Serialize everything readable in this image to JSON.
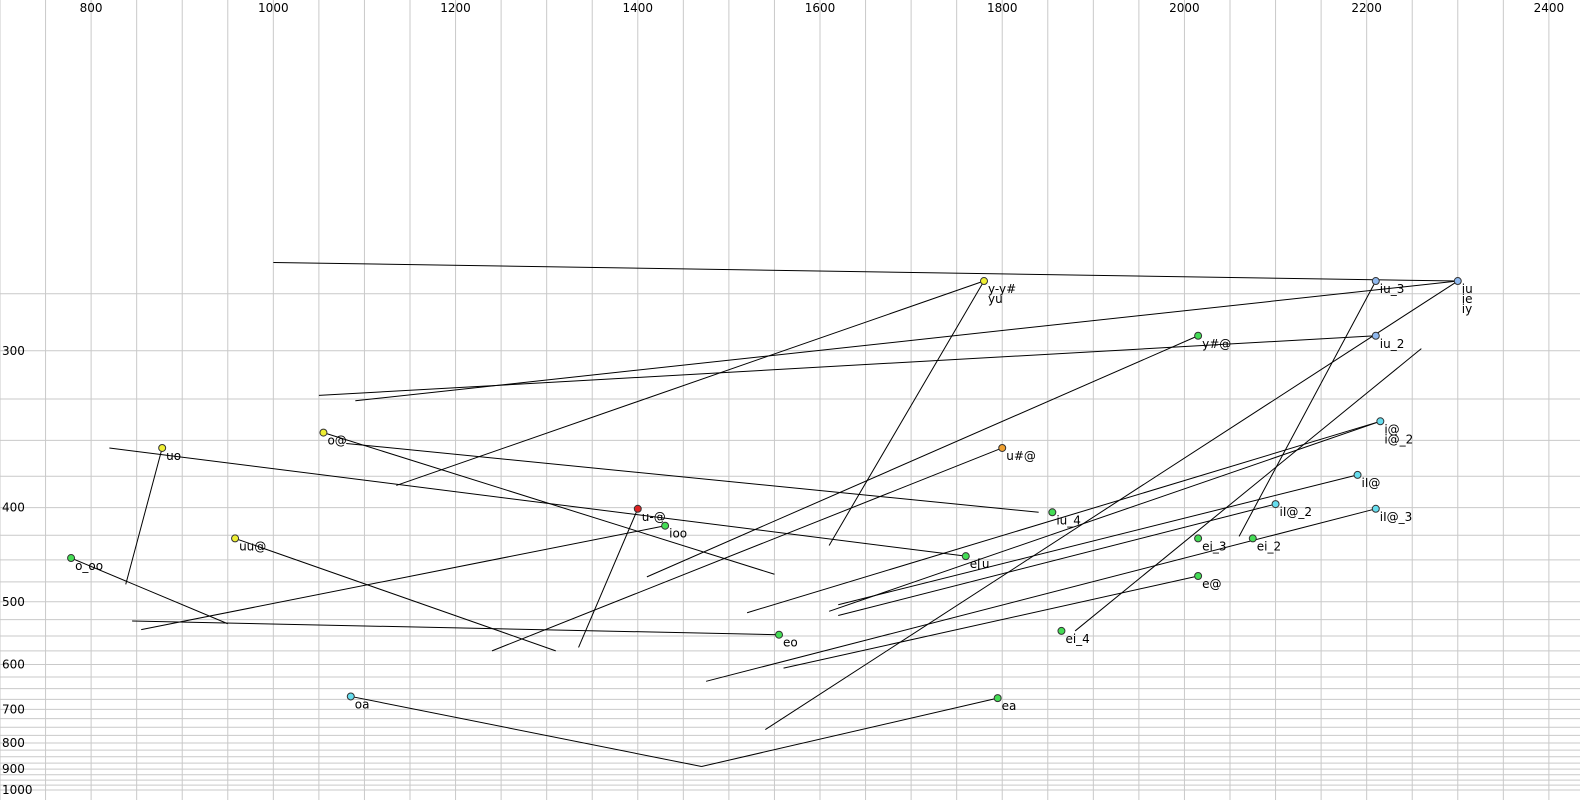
{
  "chart_data": {
    "type": "scatter",
    "title": "",
    "x_axis": {
      "min": 2500,
      "max": 700,
      "reversed": true,
      "position": "top",
      "ticks": [
        2400,
        2200,
        2000,
        1800,
        1600,
        1400,
        1200,
        1000,
        800
      ],
      "tick_labels": [
        "2400",
        "2200",
        "2000",
        "1800",
        "1600",
        "1400",
        "1200",
        "1000",
        "800"
      ]
    },
    "y_axis": {
      "min": 200,
      "max": 1000,
      "scale": "reciprocal",
      "position": "left",
      "ticks": [
        300,
        400,
        500,
        600,
        700,
        800,
        900,
        1000
      ],
      "tick_labels": [
        "300",
        "400",
        "500",
        "600",
        "700",
        "800",
        "900",
        "1000"
      ]
    },
    "grid": true,
    "colors": {
      "blue": "#8fb8ee",
      "cyan": "#66ddee",
      "green": "#44dd55",
      "yellow": "#eeee33",
      "orange": "#f0a030",
      "red": "#dd2222"
    },
    "points": [
      {
        "label": "iu",
        "x": 2300,
        "y": 270,
        "color": "blue"
      },
      {
        "label": "ie",
        "x": 2300,
        "y": 270,
        "color": "blue"
      },
      {
        "label": "iy",
        "x": 2300,
        "y": 270,
        "color": "blue"
      },
      {
        "label": "iu_3",
        "x": 2210,
        "y": 270,
        "color": "blue"
      },
      {
        "label": "iu_2",
        "x": 2210,
        "y": 293,
        "color": "blue"
      },
      {
        "label": "y#@",
        "x": 2015,
        "y": 293,
        "color": "green"
      },
      {
        "label": "y-y#",
        "x": 1780,
        "y": 270,
        "color": "yellow"
      },
      {
        "label": "yu",
        "x": 1780,
        "y": 270,
        "color": "yellow"
      },
      {
        "label": "i@",
        "x": 2215,
        "y": 338,
        "color": "cyan"
      },
      {
        "label": "i@_2",
        "x": 2215,
        "y": 338,
        "color": "cyan"
      },
      {
        "label": "u#@",
        "x": 1800,
        "y": 355,
        "color": "orange"
      },
      {
        "label": "o@",
        "x": 1055,
        "y": 345,
        "color": "yellow"
      },
      {
        "label": "uo",
        "x": 878,
        "y": 355,
        "color": "yellow"
      },
      {
        "label": "iI@",
        "x": 2190,
        "y": 374,
        "color": "cyan"
      },
      {
        "label": "iI@_2",
        "x": 2100,
        "y": 397,
        "color": "cyan"
      },
      {
        "label": "iI@_3",
        "x": 2210,
        "y": 401,
        "color": "cyan"
      },
      {
        "label": "iu_4",
        "x": 1855,
        "y": 404,
        "color": "green"
      },
      {
        "label": "u-@",
        "x": 1400,
        "y": 401,
        "color": "red"
      },
      {
        "label": "ioo",
        "x": 1430,
        "y": 416,
        "color": "green"
      },
      {
        "label": "ei_2",
        "x": 2075,
        "y": 428,
        "color": "green"
      },
      {
        "label": "ei_3",
        "x": 2015,
        "y": 428,
        "color": "green"
      },
      {
        "label": "uu@",
        "x": 958,
        "y": 428,
        "color": "yellow"
      },
      {
        "label": "e[u",
        "x": 1760,
        "y": 446,
        "color": "green"
      },
      {
        "label": "o_oo",
        "x": 778,
        "y": 448,
        "color": "green"
      },
      {
        "label": "e@",
        "x": 2015,
        "y": 468,
        "color": "green"
      },
      {
        "label": "ei_4",
        "x": 1865,
        "y": 542,
        "color": "green"
      },
      {
        "label": "eo",
        "x": 1555,
        "y": 548,
        "color": "green"
      },
      {
        "label": "ea",
        "x": 1795,
        "y": 672,
        "color": "green"
      },
      {
        "label": "oa",
        "x": 1085,
        "y": 668,
        "color": "cyan"
      }
    ],
    "trajectories": [
      {
        "from": [
          2300,
          270
        ],
        "to": [
          1000,
          263
        ]
      },
      {
        "from": [
          2300,
          270
        ],
        "to": [
          1090,
          326
        ]
      },
      {
        "from": [
          2300,
          270
        ],
        "to": [
          1540,
          757
        ]
      },
      {
        "from": [
          2210,
          270
        ],
        "to": [
          2060,
          426
        ]
      },
      {
        "from": [
          2210,
          293
        ],
        "to": [
          1050,
          323
        ]
      },
      {
        "from": [
          2260,
          299
        ],
        "to": [
          1880,
          542
        ]
      },
      {
        "from": [
          2015,
          293
        ],
        "to": [
          1410,
          469
        ]
      },
      {
        "from": [
          1780,
          270
        ],
        "to": [
          1610,
          435
        ]
      },
      {
        "from": [
          1780,
          270
        ],
        "to": [
          1135,
          382
        ]
      },
      {
        "from": [
          2215,
          338
        ],
        "to": [
          1610,
          513
        ]
      },
      {
        "from": [
          2215,
          338
        ],
        "to": [
          1520,
          515
        ]
      },
      {
        "from": [
          1800,
          355
        ],
        "to": [
          1240,
          575
        ]
      },
      {
        "from": [
          1840,
          404
        ],
        "to": [
          1080,
          352
        ]
      },
      {
        "from": [
          1055,
          345
        ],
        "to": [
          1550,
          466
        ]
      },
      {
        "from": [
          878,
          355
        ],
        "to": [
          838,
          478
        ]
      },
      {
        "from": [
          2190,
          374
        ],
        "to": [
          1620,
          504
        ]
      },
      {
        "from": [
          2100,
          397
        ],
        "to": [
          1620,
          519
        ]
      },
      {
        "from": [
          2210,
          401
        ],
        "to": [
          1475,
          634
        ]
      },
      {
        "from": [
          1400,
          401
        ],
        "to": [
          1335,
          569
        ]
      },
      {
        "from": [
          1760,
          446
        ],
        "to": [
          820,
          355
        ]
      },
      {
        "from": [
          1430,
          416
        ],
        "to": [
          855,
          540
        ]
      },
      {
        "from": [
          958,
          428
        ],
        "to": [
          1310,
          575
        ]
      },
      {
        "from": [
          778,
          448
        ],
        "to": [
          950,
          531
        ]
      },
      {
        "from": [
          2015,
          468
        ],
        "to": [
          1560,
          607
        ]
      },
      {
        "from": [
          1555,
          548
        ],
        "to": [
          845,
          527
        ]
      },
      {
        "from": [
          1795,
          672
        ],
        "to": [
          1470,
          889
        ]
      },
      {
        "from": [
          1085,
          668
        ],
        "to": [
          1470,
          889
        ]
      }
    ]
  }
}
